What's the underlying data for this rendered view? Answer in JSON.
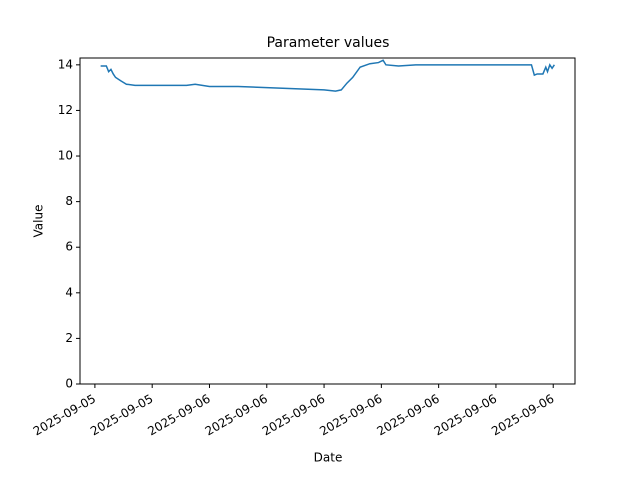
{
  "chart_data": {
    "type": "line",
    "title": "Parameter values",
    "x_label": "Date",
    "y_label": "Value",
    "x": [
      0.1,
      0.2,
      0.24,
      0.28,
      0.32,
      0.36,
      0.45,
      0.55,
      0.7,
      1.0,
      1.3,
      1.6,
      1.75,
      2.0,
      2.5,
      3.0,
      3.5,
      4.0,
      4.2,
      4.3,
      4.4,
      4.5,
      4.63,
      4.8,
      4.95,
      5.03,
      5.08,
      5.3,
      5.6,
      6.0,
      6.5,
      7.0,
      7.5,
      7.62,
      7.67,
      7.72,
      7.82,
      7.87,
      7.9,
      7.94,
      7.98,
      8.02
    ],
    "series": [
      {
        "name": "Value",
        "color": "#1f77b4",
        "values": [
          13.95,
          13.95,
          13.7,
          13.8,
          13.6,
          13.45,
          13.3,
          13.15,
          13.1,
          13.1,
          13.1,
          13.1,
          13.15,
          13.05,
          13.05,
          13.0,
          12.95,
          12.9,
          12.85,
          12.9,
          13.2,
          13.45,
          13.9,
          14.05,
          14.1,
          14.2,
          14.0,
          13.95,
          14.0,
          14.0,
          14.0,
          14.0,
          14.0,
          14.0,
          13.55,
          13.6,
          13.6,
          13.9,
          13.7,
          14.0,
          13.85,
          14.0
        ]
      }
    ],
    "xlim": [
      -0.26,
      8.38
    ],
    "xticks": [
      {
        "value": 0,
        "label": "2025-09-05"
      },
      {
        "value": 1,
        "label": "2025-09-05"
      },
      {
        "value": 2,
        "label": "2025-09-06"
      },
      {
        "value": 3,
        "label": "2025-09-06"
      },
      {
        "value": 4,
        "label": "2025-09-06"
      },
      {
        "value": 5,
        "label": "2025-09-06"
      },
      {
        "value": 6,
        "label": "2025-09-06"
      },
      {
        "value": 7,
        "label": "2025-09-06"
      },
      {
        "value": 8,
        "label": "2025-09-06"
      }
    ],
    "ylim": [
      0,
      14.3
    ],
    "yticks": [
      0,
      2,
      4,
      6,
      8,
      10,
      12,
      14
    ],
    "grid": false
  }
}
